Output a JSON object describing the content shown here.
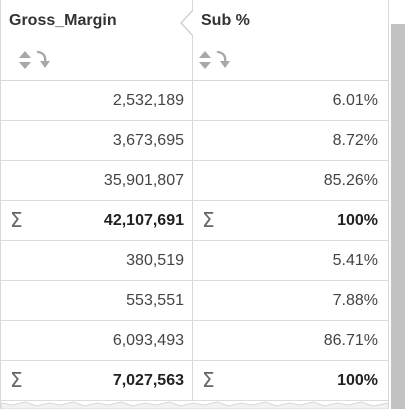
{
  "columns": [
    {
      "label": "Gross_Margin"
    },
    {
      "label": "Sub %"
    }
  ],
  "rows": [
    {
      "type": "data",
      "c1": "2,532,189",
      "c2": "6.01%"
    },
    {
      "type": "data",
      "c1": "3,673,695",
      "c2": "8.72%"
    },
    {
      "type": "data",
      "c1": "35,901,807",
      "c2": "85.26%"
    },
    {
      "type": "total",
      "c1": "42,107,691",
      "c2": "100%"
    },
    {
      "type": "data",
      "c1": "380,519",
      "c2": "5.41%"
    },
    {
      "type": "data",
      "c1": "553,551",
      "c2": "7.88%"
    },
    {
      "type": "data",
      "c1": "6,093,493",
      "c2": "86.71%"
    },
    {
      "type": "total",
      "c1": "7,027,563",
      "c2": "100%"
    }
  ],
  "symbols": {
    "sum": "Σ"
  },
  "colors": {
    "border": "#d8d8d8",
    "text": "#444444",
    "icon": "#a8a8a8",
    "scroll_thumb": "#c2c2c2"
  },
  "icons": {
    "sort": "sort-updown-icon",
    "sort_desc": "sort-descending-arrow-icon",
    "collapse": "collapse-notch-icon",
    "sum": "sigma-icon"
  }
}
